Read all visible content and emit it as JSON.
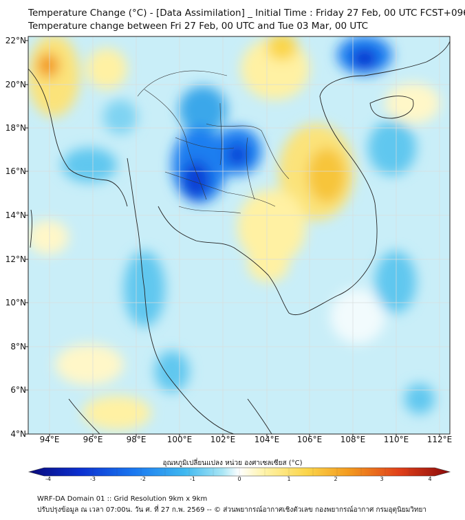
{
  "header": {
    "title_line1": "Temperature Change (°C) - [Data Assimilation] _ Initial Time : Friday 27 Feb, 00 UTC FCST+096",
    "title_line2": "Temperature change between Fri 27 Feb, 00 UTC and Tue 03 Mar, 00 UTC"
  },
  "map": {
    "lat_labels": [
      "22°N",
      "20°N",
      "18°N",
      "16°N",
      "14°N",
      "12°N",
      "10°N",
      "8°N",
      "6°N",
      "4°N"
    ],
    "lon_labels": [
      "94°E",
      "96°E",
      "98°E",
      "100°E",
      "102°E",
      "104°E",
      "106°E",
      "108°E",
      "110°E",
      "112°E"
    ],
    "lon_range": [
      93,
      112.5
    ],
    "lat_range": [
      4,
      22.2
    ]
  },
  "colorbar": {
    "title": "อุณหภูมิเปลี่ยนแปลง หน่วย องศาเซลเซียส (°C)",
    "ticks": [
      "-4",
      "-3",
      "-2",
      "-1",
      "0",
      "1",
      "2",
      "3",
      "4"
    ],
    "colors": [
      "#0a0a7a",
      "#0b2fcf",
      "#1a78f0",
      "#3fb8f0",
      "#a9e6f5",
      "#ffffff",
      "#fff3a8",
      "#fbd54a",
      "#f39a1f",
      "#e0401a",
      "#8b0a0a"
    ]
  },
  "footer": {
    "line1": "WRF-DA Domain 01 :: Grid Resolution 9km x 9km",
    "line2": "ปรับปรุงข้อมูล ณ เวลา 07:00น. วัน ศ. ที่ 27 ก.พ. 2569 -- © ส่วนพยากรณ์อากาศเชิงตัวเลข กองพยากรณ์อากาศ กรมอุตุนิยมวิทยา"
  }
}
